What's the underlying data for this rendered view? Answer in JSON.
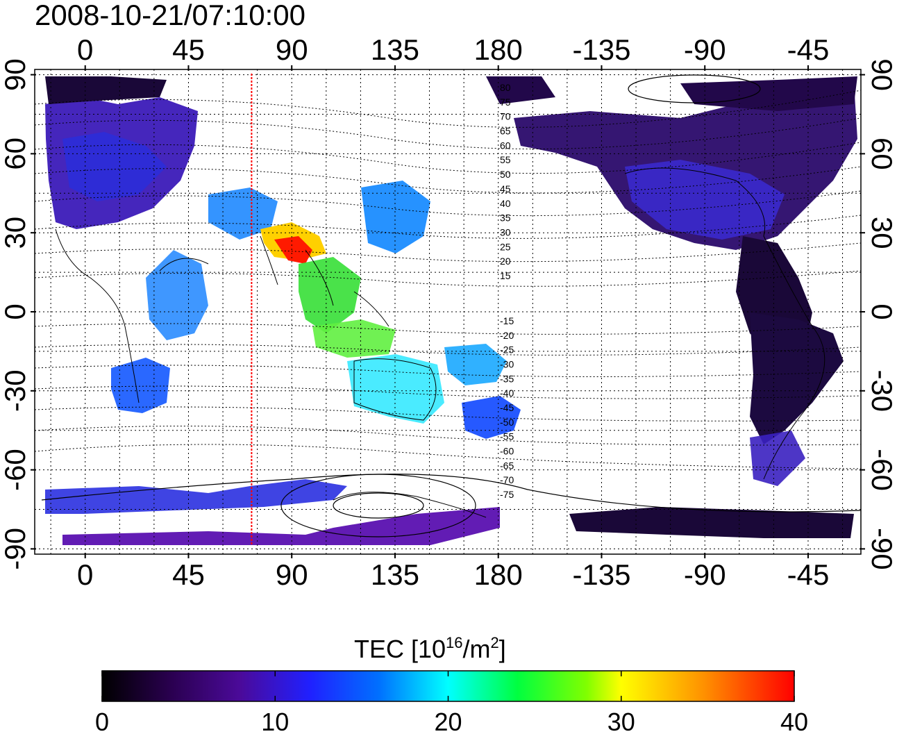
{
  "timestamp": "2008-10-21/07:10:00",
  "map": {
    "x_ticks": [
      "0",
      "45",
      "90",
      "135",
      "180",
      "-135",
      "-90",
      "-45"
    ],
    "x_tick_lons": [
      0,
      45,
      90,
      135,
      180,
      225,
      270,
      315
    ],
    "y_ticks": [
      "90",
      "60",
      "30",
      "0",
      "-30",
      "-60",
      "-90"
    ],
    "y_tick_lats": [
      90,
      60,
      30,
      0,
      -30,
      -60,
      -90
    ],
    "lon_range": [
      -22,
      338
    ],
    "lat_range": [
      -92,
      92
    ],
    "meridian_marker_lon": 72.5,
    "meridian_marker_color": "#ff0000",
    "contour_labels": [
      "80",
      "75",
      "70",
      "65",
      "60",
      "55",
      "50",
      "45",
      "40",
      "35",
      "30",
      "25",
      "20",
      "15",
      "-15",
      "-20",
      "-25",
      "-30",
      "-35",
      "-40",
      "-45",
      "-50",
      "-55",
      "-60",
      "-65",
      "-70",
      "-75"
    ]
  },
  "colorbar": {
    "label_main": "TEC  [10",
    "label_sup1": "16",
    "label_mid": "/m",
    "label_sup2": "2",
    "label_end": "]",
    "ticks": [
      "0",
      "10",
      "20",
      "30",
      "40"
    ],
    "tick_values": [
      0,
      10,
      20,
      30,
      40
    ],
    "range": [
      0,
      40
    ],
    "colors": [
      "#000000",
      "#2a0050",
      "#4b0a9a",
      "#2020ff",
      "#0070ff",
      "#00ffff",
      "#00ff40",
      "#80ff00",
      "#ffff00",
      "#ff9000",
      "#ff0000"
    ]
  }
}
